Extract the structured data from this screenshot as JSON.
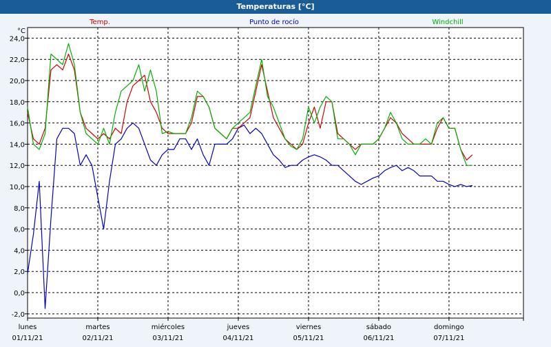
{
  "title": "Temperaturas [°C]",
  "colors": {
    "title_bg": "#1a5d96",
    "page_bg": "#eff4fa",
    "plot_bg": "#ffffff",
    "temp": "#d40000",
    "dew": "#0000c8",
    "windchill": "#00b000"
  },
  "chart_data": {
    "type": "line",
    "title": "Temperaturas [°C]",
    "ylabel": "°C",
    "ylim": [
      -2.4,
      25
    ],
    "yticks": [
      "24,0",
      "22,0",
      "20,0",
      "18,0",
      "16,0",
      "14,0",
      "12,0",
      "10,0",
      "8,0",
      "6,0",
      "4,0",
      "2,0",
      "0,0",
      "-2,0"
    ],
    "ytick_values": [
      24,
      22,
      20,
      18,
      16,
      14,
      12,
      10,
      8,
      6,
      4,
      2,
      0,
      -2
    ],
    "xlim": [
      0,
      7.06
    ],
    "grid": true,
    "legend_position": "top",
    "x_ticks": [
      {
        "day": "lunes",
        "date": "01/11/21"
      },
      {
        "day": "martes",
        "date": "02/11/21"
      },
      {
        "day": "miércoles",
        "date": "03/11/21"
      },
      {
        "day": "jueves",
        "date": "04/11/21"
      },
      {
        "day": "viernes",
        "date": "05/11/21"
      },
      {
        "day": "sábado",
        "date": "06/11/21"
      },
      {
        "day": "domingo",
        "date": "07/11/21"
      }
    ],
    "series": [
      {
        "name": "Temp.",
        "color": "#d40000",
        "x_step_hours": 2,
        "values": [
          17.0,
          14.5,
          14.0,
          15.5,
          21.0,
          21.5,
          21.0,
          22.5,
          21.0,
          17.0,
          15.5,
          15.0,
          14.5,
          15.0,
          14.5,
          15.5,
          15.0,
          18.0,
          19.5,
          20.0,
          20.5,
          18.0,
          17.0,
          15.5,
          15.0,
          15.0,
          15.0,
          15.0,
          16.0,
          18.5,
          18.5,
          17.5,
          15.5,
          15.0,
          14.5,
          15.5,
          15.5,
          16.0,
          16.5,
          19.0,
          21.5,
          19.0,
          16.5,
          15.5,
          14.5,
          14.0,
          13.5,
          14.0,
          16.0,
          17.5,
          15.5,
          18.0,
          18.0,
          15.0,
          14.5,
          14.0,
          13.5,
          14.0,
          14.0,
          14.0,
          14.5,
          15.5,
          16.5,
          16.0,
          15.0,
          14.5,
          14.0,
          14.0,
          14.0,
          14.0,
          15.5,
          16.5,
          15.5,
          15.5,
          13.5,
          12.5,
          13.0
        ]
      },
      {
        "name": "Punto de rocío",
        "color": "#0000c8",
        "x_step_hours": 2,
        "values": [
          1.8,
          5.5,
          10.5,
          -1.5,
          7.0,
          14.5,
          15.5,
          15.5,
          15.0,
          12.0,
          13.0,
          12.0,
          9.0,
          6.0,
          10.5,
          14.0,
          14.5,
          15.5,
          16.0,
          15.5,
          14.0,
          12.5,
          12.0,
          13.0,
          13.5,
          13.5,
          14.5,
          14.5,
          13.5,
          14.5,
          13.0,
          12.0,
          14.0,
          14.0,
          14.0,
          14.5,
          15.5,
          15.8,
          15.0,
          15.5,
          15.0,
          14.0,
          13.0,
          12.5,
          11.8,
          12.0,
          12.0,
          12.5,
          12.8,
          13.0,
          12.8,
          12.5,
          12.0,
          12.0,
          11.5,
          11.0,
          10.5,
          10.2,
          10.5,
          10.8,
          11.0,
          11.5,
          11.8,
          12.0,
          11.5,
          11.8,
          11.5,
          11.0,
          11.0,
          11.0,
          10.5,
          10.5,
          10.2,
          10.0,
          10.2,
          10.0,
          10.1
        ]
      },
      {
        "name": "Windchill",
        "color": "#00b000",
        "x_step_hours": 2,
        "values": [
          17.5,
          14.0,
          13.5,
          15.0,
          22.5,
          22.0,
          21.5,
          23.5,
          21.5,
          17.0,
          15.0,
          14.5,
          14.0,
          15.5,
          14.0,
          17.0,
          19.0,
          19.5,
          20.0,
          21.5,
          19.0,
          21.0,
          19.0,
          15.0,
          15.2,
          15.0,
          15.0,
          15.0,
          16.5,
          19.0,
          18.5,
          17.5,
          15.5,
          15.0,
          14.5,
          15.5,
          16.0,
          16.5,
          17.0,
          19.5,
          22.0,
          18.5,
          17.5,
          16.0,
          14.5,
          13.8,
          13.5,
          14.5,
          17.5,
          16.0,
          17.5,
          18.5,
          18.0,
          14.5,
          14.5,
          14.0,
          13.0,
          14.0,
          14.0,
          14.0,
          14.5,
          15.5,
          17.0,
          16.0,
          14.5,
          14.0,
          14.0,
          14.0,
          14.5,
          14.0,
          16.0,
          16.5,
          15.5,
          15.5,
          13.5,
          12.0,
          12.0
        ]
      }
    ]
  }
}
